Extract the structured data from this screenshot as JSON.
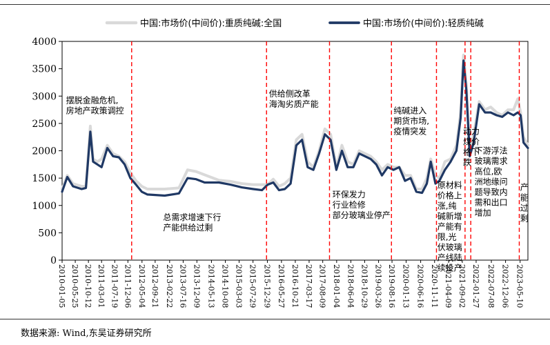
{
  "chart_data": {
    "type": "line",
    "legend": [
      {
        "name": "中国:市场价(中间价):重质纯碱:全国",
        "color": "#d9d9d9"
      },
      {
        "name": "中国:市场价(中间价):轻质纯碱",
        "color": "#1f3864"
      }
    ],
    "legend_placement": "top",
    "ylim": [
      0,
      4000
    ],
    "y_ticks": [
      "0",
      "500",
      "1000",
      "1500",
      "2000",
      "2500",
      "3000",
      "3500",
      "4000"
    ],
    "x_ticks": [
      "2010-01-05",
      "2010-05-25",
      "2010-10-12",
      "2011-03-01",
      "2011-07-19",
      "2011-12-06",
      "2012-05-04",
      "2012-09-21",
      "2013-02-22",
      "2013-07-16",
      "2013-12-09",
      "2014-05-13",
      "2014-10-08",
      "2015-03-03",
      "2015-07-29",
      "2015-12-29",
      "2016-05-27",
      "2016-10-21",
      "2017-03-17",
      "2017-08-09",
      "2018-01-04",
      "2018-06-04",
      "2018-10-29",
      "2019-03-26",
      "2019-08-16",
      "2020-01-13",
      "2020-06-16",
      "2020-11-11",
      "2021-04-09",
      "2021-09-02",
      "2022-01-27",
      "2022-07-08",
      "2022-12-06",
      "2023-05-10"
    ],
    "x_range": [
      "2010-01-05",
      "2023-08-01"
    ],
    "grid": false,
    "series": [
      {
        "name": "中国:市场价(中间价):重质纯碱:全国",
        "x": [
          "2010-01-05",
          "2010-03-01",
          "2010-05-01",
          "2010-08-01",
          "2010-09-15",
          "2010-11-01",
          "2010-12-01",
          "2011-01-15",
          "2011-03-01",
          "2011-05-01",
          "2011-07-01",
          "2011-09-01",
          "2011-11-01",
          "2012-01-01",
          "2012-03-01",
          "2012-05-01",
          "2012-07-01",
          "2013-01-01",
          "2013-06-01",
          "2013-09-01",
          "2013-12-01",
          "2014-03-01",
          "2014-08-01",
          "2014-12-01",
          "2015-04-01",
          "2015-08-01",
          "2015-11-01",
          "2016-01-01",
          "2016-03-01",
          "2016-05-01",
          "2016-07-01",
          "2016-09-01",
          "2016-11-01",
          "2017-01-01",
          "2017-03-01",
          "2017-05-01",
          "2017-07-01",
          "2017-09-01",
          "2017-11-01",
          "2018-01-01",
          "2018-03-01",
          "2018-05-01",
          "2018-07-01",
          "2018-09-01",
          "2018-11-01",
          "2019-01-01",
          "2019-03-01",
          "2019-05-01",
          "2019-07-01",
          "2019-09-01",
          "2019-11-01",
          "2020-01-01",
          "2020-03-01",
          "2020-05-01",
          "2020-07-01",
          "2020-08-20",
          "2020-10-01",
          "2020-11-20",
          "2021-01-01",
          "2021-03-01",
          "2021-05-01",
          "2021-07-01",
          "2021-08-15",
          "2021-09-15",
          "2021-10-15",
          "2021-11-20",
          "2022-01-01",
          "2022-03-01",
          "2022-05-01",
          "2022-07-01",
          "2022-09-01",
          "2022-11-01",
          "2023-01-01",
          "2023-03-01",
          "2023-04-15",
          "2023-05-15",
          "2023-06-15",
          "2023-08-01"
        ],
        "values": [
          1300,
          1550,
          1400,
          1350,
          1350,
          2450,
          1850,
          1800,
          1850,
          2100,
          1950,
          1900,
          1800,
          1600,
          1450,
          1350,
          1300,
          1300,
          1320,
          1650,
          1620,
          1560,
          1460,
          1440,
          1400,
          1380,
          1380,
          1380,
          1480,
          1350,
          1400,
          1500,
          2200,
          2300,
          1800,
          1700,
          2000,
          2400,
          2300,
          1700,
          2100,
          1800,
          1750,
          2000,
          1950,
          1900,
          1800,
          1650,
          1750,
          1700,
          1700,
          1550,
          1550,
          1300,
          1300,
          1500,
          1850,
          1550,
          1500,
          1800,
          1850,
          2100,
          2700,
          3750,
          3200,
          2000,
          2300,
          2900,
          2750,
          2800,
          2700,
          2650,
          2750,
          2750,
          2950,
          2700,
          2250,
          2100
        ]
      },
      {
        "name": "中国:市场价(中间价):轻质纯碱",
        "x": [
          "2010-01-05",
          "2010-03-01",
          "2010-05-01",
          "2010-08-01",
          "2010-09-15",
          "2010-11-01",
          "2010-12-01",
          "2011-01-15",
          "2011-03-01",
          "2011-05-01",
          "2011-07-01",
          "2011-09-01",
          "2011-11-01",
          "2012-01-01",
          "2012-03-01",
          "2012-05-01",
          "2012-07-01",
          "2013-01-01",
          "2013-06-01",
          "2013-09-01",
          "2013-12-01",
          "2014-03-01",
          "2014-08-01",
          "2014-12-01",
          "2015-04-01",
          "2015-08-01",
          "2015-11-01",
          "2016-01-01",
          "2016-03-01",
          "2016-05-01",
          "2016-07-01",
          "2016-09-01",
          "2016-11-01",
          "2017-01-01",
          "2017-03-01",
          "2017-05-01",
          "2017-07-01",
          "2017-09-01",
          "2017-11-01",
          "2018-01-01",
          "2018-03-01",
          "2018-05-01",
          "2018-07-01",
          "2018-09-01",
          "2018-11-01",
          "2019-01-01",
          "2019-03-01",
          "2019-05-01",
          "2019-07-01",
          "2019-09-01",
          "2019-11-01",
          "2020-01-01",
          "2020-03-01",
          "2020-05-01",
          "2020-07-01",
          "2020-08-20",
          "2020-10-01",
          "2020-11-20",
          "2021-01-01",
          "2021-03-01",
          "2021-05-01",
          "2021-07-01",
          "2021-08-15",
          "2021-09-15",
          "2021-10-15",
          "2021-11-20",
          "2022-01-01",
          "2022-03-01",
          "2022-05-01",
          "2022-07-01",
          "2022-09-01",
          "2022-11-01",
          "2023-01-01",
          "2023-03-01",
          "2023-04-15",
          "2023-05-15",
          "2023-06-15",
          "2023-08-01"
        ],
        "values": [
          1250,
          1520,
          1350,
          1300,
          1320,
          2350,
          1800,
          1750,
          1700,
          2050,
          1900,
          1880,
          1750,
          1500,
          1380,
          1250,
          1200,
          1180,
          1220,
          1500,
          1480,
          1420,
          1420,
          1380,
          1330,
          1300,
          1280,
          1380,
          1420,
          1280,
          1300,
          1400,
          2100,
          2200,
          1700,
          1650,
          1950,
          2300,
          2200,
          1650,
          2000,
          1700,
          1700,
          1950,
          1900,
          1850,
          1750,
          1550,
          1700,
          1650,
          1700,
          1450,
          1500,
          1250,
          1230,
          1400,
          1800,
          1400,
          1450,
          1650,
          1800,
          2000,
          2600,
          3650,
          3100,
          1900,
          2150,
          2850,
          2700,
          2700,
          2650,
          2620,
          2700,
          2650,
          2700,
          2650,
          2150,
          2050
        ]
      }
    ],
    "annotations": [
      {
        "date": "2012-01-15",
        "text": "摆脱金融危机,\n房地产政策调控",
        "text_anchor": "2010-02-15",
        "text_y": 2870
      },
      {
        "date": "2012-01-15",
        "text": "总需求增速下行\n产能供给过剩",
        "text_anchor": "2012-12-15",
        "text_y": 730
      },
      {
        "date": "2015-12-20",
        "text": "供给侧改革\n海淘劣质产能",
        "text_anchor": "2016-01-15",
        "text_y": 2990
      },
      {
        "date": "2017-10-20",
        "text": "环保发力\n行业检修\n部分玻璃业停产",
        "text_anchor": "2017-11-20",
        "text_y": 1150
      },
      {
        "date": "2019-08-10",
        "text": "纯碱进入\n期货市场,\n疫情突发",
        "text_anchor": "2019-09-01",
        "text_y": 2680
      },
      {
        "date": "2020-12-01",
        "text": "原材料\n价格上\n涨,纯\n碱新增\n产能有\n限,光\n伏玻璃\n产线陆\n续投产",
        "text_anchor": "2020-12-10",
        "text_y": 1320
      },
      {
        "date": "2021-10-01",
        "text": "动力\n煤价\n格下\n跌",
        "text_anchor": "2021-09-10",
        "text_y": 2300
      },
      {
        "date": "2021-12-01",
        "text": "下游浮法\n玻璃需求\n高位,欧\n洲地缘问\n题导致内\n需和出口\n增加",
        "text_anchor": "2022-01-10",
        "text_y": 1950
      },
      {
        "date": "2023-05-01",
        "text": "产\n能\n过\n剩",
        "text_anchor": "2023-05-10",
        "text_y": 1280
      }
    ],
    "source": "数据来源:  Wind,东吴证券研究所"
  }
}
